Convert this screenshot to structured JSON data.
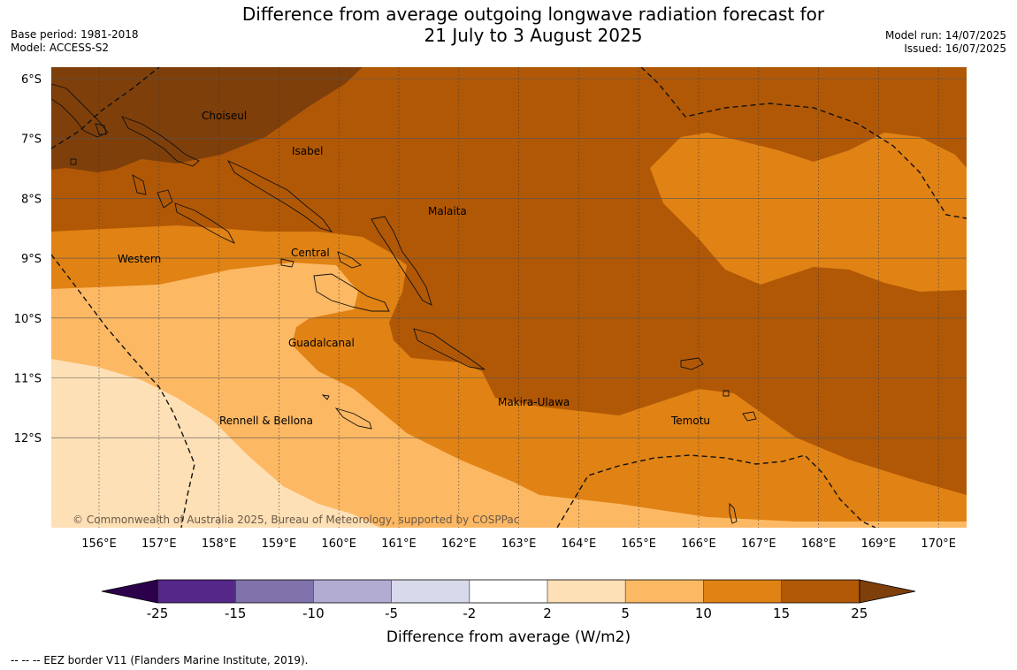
{
  "header": {
    "title_line1": "Difference from average outgoing longwave radiation forecast for",
    "title_line2": "21 July to 3 August 2025",
    "base_period": "Base period: 1981-2018",
    "model": "Model: ACCESS-S2",
    "model_run": "Model run: 14/07/2025",
    "issued": "Issued: 16/07/2025"
  },
  "map": {
    "lon_ticks": [
      "156°E",
      "157°E",
      "158°E",
      "159°E",
      "160°E",
      "161°E",
      "162°E",
      "163°E",
      "164°E",
      "165°E",
      "166°E",
      "167°E",
      "168°E",
      "169°E",
      "170°E"
    ],
    "lat_ticks": [
      "6°S",
      "7°S",
      "8°S",
      "9°S",
      "10°S",
      "11°S",
      "12°S"
    ],
    "province_labels": [
      "Choiseul",
      "Isabel",
      "Malaita",
      "Western",
      "Central",
      "Guadalcanal",
      "Makira-Ulawa",
      "Rennell & Bellona",
      "Temotu"
    ],
    "copyright": "© Commonwealth of Australia 2025, Bureau of Meteorology, supported by COSPPac",
    "colors": {
      "above_25": "#7f3f0a",
      "15_to_25": "#b15806",
      "10_to_15": "#e08214",
      "5_to_10": "#fdb863",
      "2_to_5": "#fee0b6",
      "neutral": "#ffffff",
      "n5_to_n2": "#d8daeb",
      "n10_to_n5": "#b2abd2",
      "n15_to_n10": "#8073ac",
      "n25_to_n15": "#542788",
      "below_n25": "#2d004b"
    }
  },
  "colorbar": {
    "ticks": [
      "-25",
      "-15",
      "-10",
      "-5",
      "-2",
      "2",
      "5",
      "10",
      "15",
      "25"
    ],
    "label": "Difference from average (W/m2)"
  },
  "footer": {
    "eez_note": "--  --  -- EEZ border V11 (Flanders Marine Institute, 2019)."
  }
}
